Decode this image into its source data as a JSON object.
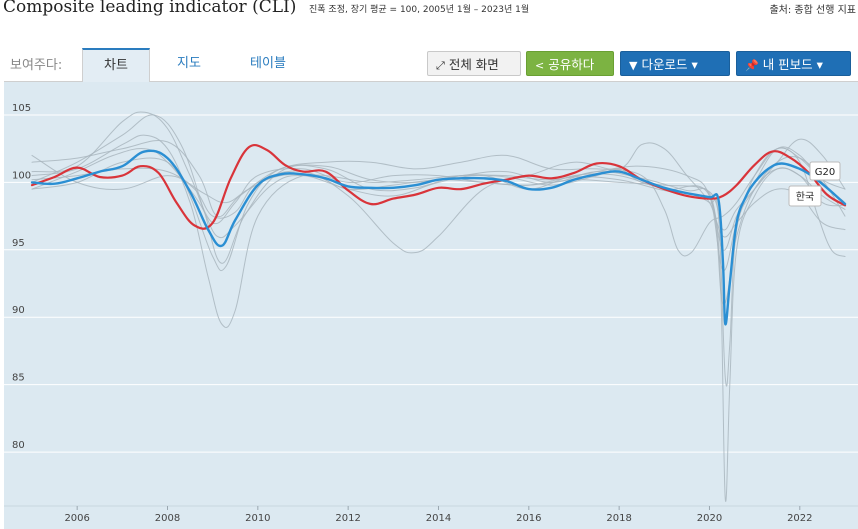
{
  "header": {
    "title": "Composite leading indicator (CLI)",
    "subtitle": "진폭 조정, 장기 평균 = 100, 2005년 1월 – 2023년 1월",
    "source": "출처: 종합 선행 지표"
  },
  "toolbar": {
    "view_label": "보여주다:",
    "tabs": [
      {
        "label": "차트",
        "active": true
      },
      {
        "label": "지도",
        "active": false
      },
      {
        "label": "테이블",
        "active": false
      }
    ],
    "fullscreen_label": "전체 화면",
    "share_label": "공유하다",
    "download_label": "다운로드 ▾",
    "dashboard_label": "내 핀보드 ▾"
  },
  "colors": {
    "background": "#dce9f1",
    "g20": "#2b8fd3",
    "korea": "#d9343a",
    "others": "#a9b6be"
  },
  "chart_data": {
    "type": "line",
    "title": "Composite leading indicator (CLI)",
    "xlabel": "",
    "ylabel": "",
    "ylim": [
      76,
      107
    ],
    "xlim": [
      2005.0,
      2023.2
    ],
    "y_ticks": [
      80,
      85,
      90,
      95,
      100,
      105
    ],
    "x_ticks": [
      2006,
      2008,
      2010,
      2012,
      2014,
      2016,
      2018,
      2020,
      2022
    ],
    "grid": true,
    "series": [
      {
        "name": "G20",
        "label": "G20",
        "color": "#2b8fd3",
        "width": 2.4,
        "x": [
          2005.0,
          2005.5,
          2006.0,
          2006.5,
          2007.0,
          2007.5,
          2008.0,
          2008.5,
          2008.9,
          2009.2,
          2009.5,
          2010.0,
          2010.5,
          2011.0,
          2011.5,
          2012.0,
          2012.5,
          2013.0,
          2013.5,
          2014.0,
          2014.5,
          2015.0,
          2015.5,
          2016.0,
          2016.5,
          2017.0,
          2017.5,
          2018.0,
          2018.5,
          2019.0,
          2019.5,
          2020.0,
          2020.2,
          2020.3,
          2020.35,
          2020.45,
          2020.6,
          2020.8,
          2021.0,
          2021.3,
          2021.6,
          2022.0,
          2022.3,
          2022.6,
          2022.9,
          2023.0
        ],
        "y": [
          100.0,
          99.9,
          100.3,
          100.8,
          101.2,
          102.3,
          101.8,
          99.3,
          96.5,
          95.3,
          97.2,
          99.8,
          100.6,
          100.6,
          100.3,
          99.7,
          99.6,
          99.6,
          99.8,
          100.2,
          100.3,
          100.3,
          100.1,
          99.5,
          99.6,
          100.2,
          100.6,
          100.8,
          100.2,
          99.6,
          99.2,
          98.9,
          98.7,
          94.0,
          89.5,
          92.5,
          97.0,
          98.9,
          100.0,
          101.0,
          101.4,
          101.0,
          100.4,
          99.6,
          98.7,
          98.4
        ]
      },
      {
        "name": "한국",
        "label": "한국",
        "color": "#d9343a",
        "width": 2.2,
        "x": [
          2005.0,
          2005.5,
          2006.0,
          2006.5,
          2007.0,
          2007.4,
          2007.8,
          2008.2,
          2008.6,
          2009.0,
          2009.4,
          2009.8,
          2010.2,
          2010.6,
          2011.0,
          2011.5,
          2012.0,
          2012.5,
          2013.0,
          2013.5,
          2014.0,
          2014.5,
          2015.0,
          2015.5,
          2016.0,
          2016.5,
          2017.0,
          2017.5,
          2018.0,
          2018.5,
          2019.0,
          2019.5,
          2020.0,
          2020.3,
          2020.6,
          2021.0,
          2021.4,
          2021.8,
          2022.2,
          2022.6,
          2023.0
        ],
        "y": [
          99.8,
          100.4,
          101.1,
          100.4,
          100.5,
          101.2,
          100.7,
          98.5,
          96.8,
          97.0,
          100.3,
          102.6,
          102.4,
          101.3,
          100.8,
          100.8,
          99.4,
          98.4,
          98.8,
          99.1,
          99.6,
          99.5,
          99.9,
          100.2,
          100.5,
          100.3,
          100.7,
          101.4,
          101.2,
          100.2,
          99.5,
          99.0,
          98.8,
          99.0,
          99.8,
          101.3,
          102.3,
          101.8,
          100.7,
          99.1,
          98.3
        ]
      },
      {
        "name": "c1",
        "color": "#a9b6be",
        "width": 1,
        "x": [
          2005.0,
          2006.0,
          2007.0,
          2007.5,
          2008.0,
          2008.5,
          2009.0,
          2009.3,
          2009.8,
          2010.5,
          2011.5,
          2012.5,
          2013.5,
          2014.5,
          2015.5,
          2016.5,
          2017.5,
          2018.0,
          2018.5,
          2019.5,
          2020.0,
          2020.2,
          2020.35,
          2020.45,
          2020.6,
          2021.0,
          2021.5,
          2022.0,
          2022.5,
          2023.0
        ],
        "y": [
          100.5,
          101.0,
          102.8,
          103.5,
          102.5,
          99.0,
          94.5,
          93.8,
          98.5,
          101.0,
          101.0,
          99.5,
          99.6,
          100.5,
          100.4,
          99.8,
          100.5,
          101.0,
          100.0,
          99.2,
          98.5,
          97.5,
          85.5,
          88.0,
          96.5,
          99.5,
          101.5,
          101.8,
          100.2,
          97.5
        ]
      },
      {
        "name": "c2",
        "color": "#a9b6be",
        "width": 1,
        "x": [
          2005.0,
          2006.0,
          2007.0,
          2008.0,
          2008.5,
          2008.9,
          2009.2,
          2009.5,
          2010.0,
          2011.0,
          2012.0,
          2013.0,
          2014.0,
          2015.0,
          2016.0,
          2017.0,
          2018.0,
          2019.0,
          2019.8,
          2020.1,
          2020.25,
          2020.35,
          2020.45,
          2020.6,
          2021.0,
          2021.5,
          2022.0,
          2022.5,
          2023.0
        ],
        "y": [
          99.5,
          100.0,
          101.5,
          101.5,
          98.5,
          93.0,
          89.5,
          90.5,
          97.5,
          100.5,
          99.5,
          99.8,
          100.2,
          100.0,
          99.8,
          100.4,
          100.2,
          99.4,
          99.0,
          98.0,
          92.0,
          76.5,
          85.0,
          95.0,
          99.0,
          101.0,
          100.5,
          99.0,
          98.0
        ]
      },
      {
        "name": "c3",
        "color": "#a9b6be",
        "width": 1,
        "x": [
          2005.0,
          2006.0,
          2007.0,
          2007.7,
          2008.3,
          2008.8,
          2009.2,
          2009.7,
          2010.5,
          2011.5,
          2012.5,
          2013.5,
          2014.5,
          2015.5,
          2016.5,
          2017.5,
          2018.5,
          2019.5,
          2020.0,
          2020.3,
          2020.6,
          2021.0,
          2021.5,
          2022.0,
          2022.5,
          2023.0
        ],
        "y": [
          100.0,
          101.5,
          103.5,
          105.0,
          102.8,
          98.0,
          94.0,
          97.5,
          100.8,
          101.2,
          100.2,
          100.0,
          100.5,
          100.8,
          100.0,
          100.8,
          100.3,
          99.4,
          99.2,
          95.0,
          97.5,
          100.0,
          102.5,
          102.0,
          100.0,
          98.5
        ]
      },
      {
        "name": "c4",
        "color": "#a9b6be",
        "width": 1,
        "x": [
          2005.0,
          2006.0,
          2007.0,
          2008.0,
          2008.6,
          2009.0,
          2009.5,
          2010.0,
          2011.0,
          2012.0,
          2013.0,
          2013.5,
          2014.0,
          2015.0,
          2016.0,
          2017.0,
          2018.0,
          2018.5,
          2019.0,
          2019.5,
          2020.0,
          2020.3,
          2020.6,
          2021.0,
          2021.5,
          2022.0,
          2022.5,
          2023.0
        ],
        "y": [
          102.0,
          100.0,
          99.5,
          100.5,
          99.5,
          97.5,
          97.8,
          100.0,
          100.8,
          99.0,
          95.5,
          94.8,
          96.0,
          99.5,
          100.5,
          101.5,
          101.0,
          102.8,
          102.5,
          100.5,
          98.5,
          96.0,
          97.0,
          98.5,
          99.5,
          99.0,
          97.0,
          96.5
        ]
      },
      {
        "name": "c5",
        "color": "#a9b6be",
        "width": 1,
        "x": [
          2005.0,
          2006.0,
          2007.0,
          2008.0,
          2008.7,
          2009.1,
          2009.6,
          2010.5,
          2011.5,
          2012.5,
          2013.5,
          2014.5,
          2015.5,
          2016.5,
          2017.5,
          2018.5,
          2019.0,
          2019.3,
          2019.6,
          2020.0,
          2020.3,
          2020.6,
          2021.0,
          2021.5,
          2022.0,
          2022.5,
          2023.0
        ],
        "y": [
          101.5,
          101.8,
          102.5,
          103.0,
          100.5,
          97.5,
          99.0,
          101.0,
          101.5,
          101.5,
          101.0,
          101.5,
          102.0,
          101.0,
          101.0,
          100.5,
          98.0,
          95.0,
          94.8,
          97.0,
          97.5,
          98.5,
          100.5,
          102.5,
          101.8,
          100.2,
          99.5
        ]
      },
      {
        "name": "c6",
        "color": "#a9b6be",
        "width": 1,
        "x": [
          2005.0,
          2006.0,
          2006.8,
          2007.5,
          2008.0,
          2008.7,
          2009.1,
          2009.5,
          2010.3,
          2011.0,
          2012.0,
          2013.0,
          2014.0,
          2015.0,
          2016.0,
          2017.0,
          2018.0,
          2019.0,
          2020.0,
          2020.3,
          2020.6,
          2021.0,
          2021.5,
          2022.0,
          2022.5,
          2023.0
        ],
        "y": [
          99.5,
          100.8,
          102.0,
          102.5,
          101.5,
          98.5,
          96.0,
          96.8,
          99.8,
          100.5,
          99.5,
          99.0,
          100.0,
          100.5,
          99.5,
          100.5,
          100.5,
          99.5,
          99.0,
          91.0,
          96.0,
          99.5,
          101.0,
          100.5,
          98.5,
          98.3
        ]
      },
      {
        "name": "c7",
        "color": "#a9b6be",
        "width": 1,
        "x": [
          2005.0,
          2006.0,
          2007.0,
          2008.0,
          2008.8,
          2009.3,
          2009.8,
          2010.5,
          2011.5,
          2012.5,
          2013.5,
          2014.5,
          2015.5,
          2016.5,
          2017.5,
          2018.5,
          2019.5,
          2020.0,
          2020.3,
          2020.6,
          2021.0,
          2021.5,
          2022.0,
          2022.4,
          2022.7,
          2023.0
        ],
        "y": [
          100.2,
          100.5,
          101.0,
          100.8,
          99.2,
          98.5,
          99.5,
          100.5,
          100.5,
          100.0,
          100.2,
          100.5,
          100.5,
          100.2,
          100.8,
          101.2,
          100.5,
          99.0,
          93.5,
          97.0,
          100.5,
          102.5,
          101.5,
          97.5,
          95.0,
          94.5
        ]
      },
      {
        "name": "c8",
        "color": "#a9b6be",
        "width": 1,
        "x": [
          2005.0,
          2006.0,
          2007.0,
          2007.5,
          2008.0,
          2008.5,
          2009.0,
          2009.5,
          2010.0,
          2011.0,
          2012.0,
          2013.0,
          2014.0,
          2015.0,
          2016.0,
          2017.0,
          2018.0,
          2019.0,
          2020.0,
          2020.3,
          2020.6,
          2021.0,
          2021.5,
          2022.0,
          2022.5,
          2023.0
        ],
        "y": [
          100.8,
          101.2,
          104.5,
          105.2,
          104.0,
          100.5,
          97.0,
          98.5,
          100.5,
          101.0,
          100.0,
          100.5,
          100.5,
          100.0,
          99.8,
          100.2,
          100.0,
          99.8,
          99.3,
          96.5,
          98.0,
          99.5,
          101.5,
          103.2,
          102.0,
          99.5
        ]
      }
    ]
  }
}
